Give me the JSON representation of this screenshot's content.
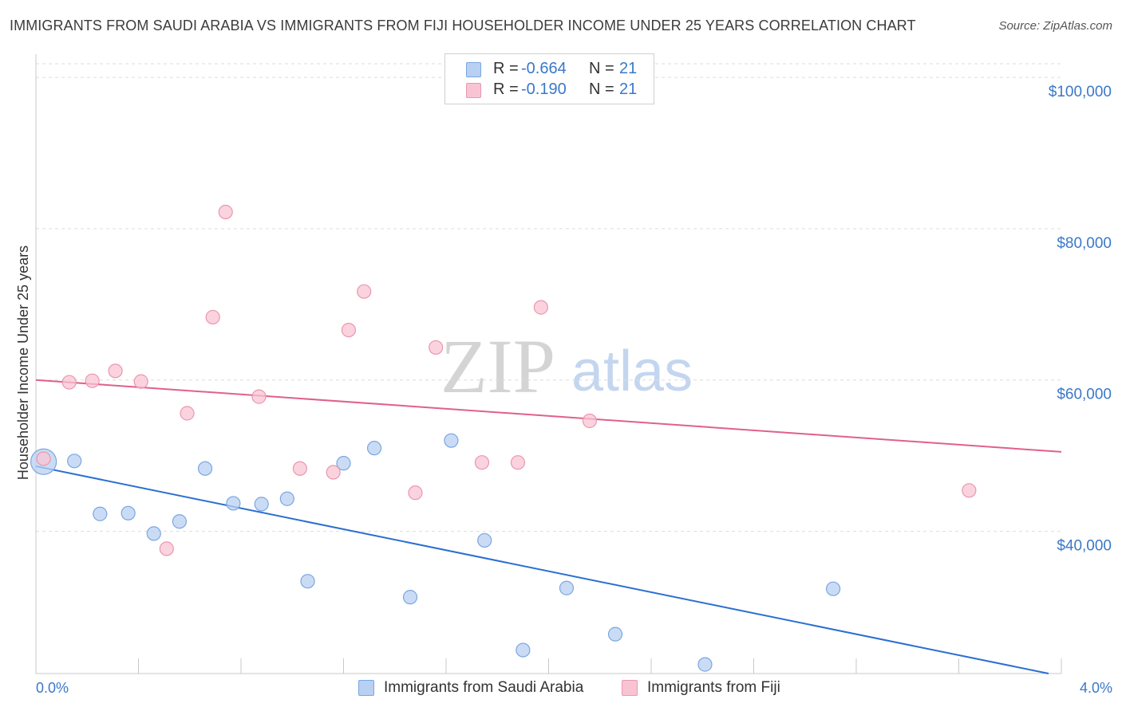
{
  "title": "IMMIGRANTS FROM SAUDI ARABIA VS IMMIGRANTS FROM FIJI HOUSEHOLDER INCOME UNDER 25 YEARS CORRELATION CHART",
  "source": "Source: ZipAtlas.com",
  "watermark": {
    "zip": "ZIP",
    "atlas": "atlas"
  },
  "stats": [
    {
      "r_label": "R =",
      "r_value": "-0.664",
      "n_label": "N =",
      "n_value": "21"
    },
    {
      "r_label": "R =",
      "r_value": "-0.190",
      "n_label": "N =",
      "n_value": "21"
    }
  ],
  "legend": [
    {
      "label": "Immigrants from Saudi Arabia"
    },
    {
      "label": "Immigrants from Fiji"
    }
  ],
  "colors": {
    "blue_fill": "#b8d0f2",
    "blue_stroke": "#7aa6e0",
    "blue_line": "#2a6fd1",
    "pink_fill": "#f8c4d3",
    "pink_stroke": "#eb96b0",
    "pink_line": "#e0608c",
    "tick_text": "#3a78c8",
    "grid": "#dcdcdc"
  },
  "chart_data": {
    "type": "scatter",
    "title": "IMMIGRANTS FROM SAUDI ARABIA VS IMMIGRANTS FROM FIJI HOUSEHOLDER INCOME UNDER 25 YEARS CORRELATION CHART",
    "xlabel": "",
    "ylabel": "Householder Income Under 25 years",
    "xlim": [
      0.0,
      4.0
    ],
    "ylim": [
      21200,
      101800
    ],
    "x_tick_labels": [
      "0.0%",
      "4.0%"
    ],
    "y_ticks": [
      {
        "value": 40000,
        "label": "$40,000"
      },
      {
        "value": 60000,
        "label": "$60,000"
      },
      {
        "value": 80000,
        "label": "$80,000"
      },
      {
        "value": 100000,
        "label": "$100,000"
      }
    ],
    "grid": true,
    "legend_position": "bottom-center",
    "series": [
      {
        "name": "Immigrants from Saudi Arabia",
        "color": "#b8d0f2",
        "points": [
          {
            "x": 0.03,
            "y": 49200,
            "large": true
          },
          {
            "x": 0.15,
            "y": 49300
          },
          {
            "x": 0.25,
            "y": 42300
          },
          {
            "x": 0.36,
            "y": 42400
          },
          {
            "x": 0.46,
            "y": 39700
          },
          {
            "x": 0.56,
            "y": 41300
          },
          {
            "x": 0.66,
            "y": 48300
          },
          {
            "x": 0.77,
            "y": 43700
          },
          {
            "x": 0.88,
            "y": 43600
          },
          {
            "x": 0.98,
            "y": 44300
          },
          {
            "x": 1.06,
            "y": 33400
          },
          {
            "x": 1.2,
            "y": 49000
          },
          {
            "x": 1.32,
            "y": 51000
          },
          {
            "x": 1.46,
            "y": 31300
          },
          {
            "x": 1.62,
            "y": 52000
          },
          {
            "x": 1.75,
            "y": 38800
          },
          {
            "x": 1.9,
            "y": 24300
          },
          {
            "x": 2.07,
            "y": 32500
          },
          {
            "x": 2.26,
            "y": 26400
          },
          {
            "x": 2.61,
            "y": 22400
          },
          {
            "x": 3.11,
            "y": 32400
          }
        ],
        "trend": {
          "x": [
            0.0,
            3.95
          ],
          "y": [
            48600,
            21200
          ]
        }
      },
      {
        "name": "Immigrants from Fiji",
        "color": "#f8c4d3",
        "points": [
          {
            "x": 0.03,
            "y": 49600
          },
          {
            "x": 0.13,
            "y": 59700
          },
          {
            "x": 0.22,
            "y": 59900
          },
          {
            "x": 0.31,
            "y": 61200
          },
          {
            "x": 0.41,
            "y": 59800
          },
          {
            "x": 0.51,
            "y": 37700
          },
          {
            "x": 0.59,
            "y": 55600
          },
          {
            "x": 0.69,
            "y": 68300
          },
          {
            "x": 0.74,
            "y": 82200
          },
          {
            "x": 0.87,
            "y": 57800
          },
          {
            "x": 1.03,
            "y": 48300
          },
          {
            "x": 1.16,
            "y": 47800
          },
          {
            "x": 1.22,
            "y": 66600
          },
          {
            "x": 1.28,
            "y": 71700
          },
          {
            "x": 1.48,
            "y": 45100
          },
          {
            "x": 1.56,
            "y": 64300
          },
          {
            "x": 1.74,
            "y": 49100
          },
          {
            "x": 1.88,
            "y": 49100
          },
          {
            "x": 1.97,
            "y": 69600
          },
          {
            "x": 2.16,
            "y": 54600
          },
          {
            "x": 3.64,
            "y": 45400
          }
        ],
        "trend": {
          "x": [
            0.0,
            4.0
          ],
          "y": [
            60000,
            50500
          ]
        }
      }
    ]
  }
}
